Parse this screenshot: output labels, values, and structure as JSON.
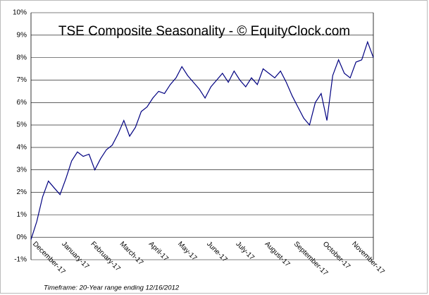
{
  "chart_data": {
    "type": "line",
    "title": "TSE Composite Seasonality - © EquityClock.com",
    "footnote": "Timeframe: 20-Year range ending 12/16/2012",
    "categories": [
      "December-17",
      null,
      null,
      null,
      null,
      "January-17",
      null,
      null,
      null,
      null,
      "February-17",
      null,
      null,
      null,
      null,
      "March-17",
      null,
      null,
      null,
      null,
      "April-17",
      null,
      null,
      null,
      null,
      "May-17",
      null,
      null,
      null,
      null,
      "June-17",
      null,
      null,
      null,
      null,
      "July-17",
      null,
      null,
      null,
      null,
      "August-17",
      null,
      null,
      null,
      null,
      "September-17",
      null,
      null,
      null,
      null,
      "October-17",
      null,
      null,
      null,
      null,
      "November-17",
      null,
      null,
      null,
      null
    ],
    "series": [
      {
        "name": "TSE Composite",
        "color": "#000080",
        "values": [
          -0.1,
          0.7,
          1.8,
          2.5,
          2.2,
          1.9,
          2.6,
          3.4,
          3.8,
          3.6,
          3.7,
          3.0,
          3.5,
          3.9,
          4.1,
          4.6,
          5.2,
          4.5,
          4.9,
          5.6,
          5.8,
          6.2,
          6.5,
          6.4,
          6.8,
          7.1,
          7.6,
          7.2,
          6.9,
          6.6,
          6.2,
          6.7,
          7.0,
          7.3,
          6.9,
          7.4,
          7.0,
          6.7,
          7.1,
          6.8,
          7.5,
          7.3,
          7.1,
          7.4,
          6.9,
          6.3,
          5.8,
          5.3,
          5.0,
          6.0,
          6.4,
          5.2,
          7.2,
          7.9,
          7.3,
          7.1,
          7.8,
          7.9,
          8.7,
          8.0
        ]
      }
    ],
    "ylim": [
      -1,
      10
    ],
    "yticks": [
      {
        "value": -1,
        "label": "-1%"
      },
      {
        "value": 0,
        "label": "0%"
      },
      {
        "value": 1,
        "label": "1%"
      },
      {
        "value": 2,
        "label": "2%"
      },
      {
        "value": 3,
        "label": "3%"
      },
      {
        "value": 4,
        "label": "4%"
      },
      {
        "value": 5,
        "label": "5%"
      },
      {
        "value": 6,
        "label": "6%"
      },
      {
        "value": 7,
        "label": "7%"
      },
      {
        "value": 8,
        "label": "8%"
      },
      {
        "value": 9,
        "label": "9%"
      },
      {
        "value": 10,
        "label": "10%"
      }
    ],
    "grid": true
  }
}
